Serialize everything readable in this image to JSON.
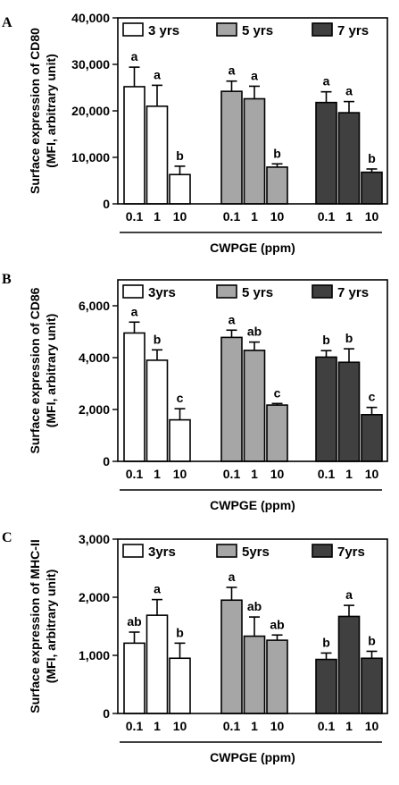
{
  "colors": {
    "3y": "#ffffff",
    "5y": "#a6a6a6",
    "7y": "#404040"
  },
  "chart_data": [
    {
      "type": "bar",
      "panel_label": "A",
      "ylabel_line1": "Surface expression of CD80",
      "ylabel_line2": "(MFI, arbitrary unit)",
      "xlabel": "CWPGE  (ppm)",
      "categories": [
        "0.1",
        "1",
        "10"
      ],
      "ylim": [
        0,
        40000
      ],
      "yticks": [
        0,
        10000,
        20000,
        30000,
        40000
      ],
      "ytick_labels": [
        "0",
        "10,000",
        "20,000",
        "30,000",
        "40,000"
      ],
      "legend_position": "top",
      "series": [
        {
          "name": "3 yrs",
          "color": "3y",
          "values": [
            25200,
            21000,
            6300
          ],
          "errors": [
            4200,
            4500,
            1800
          ],
          "labels": [
            "a",
            "a",
            "b"
          ]
        },
        {
          "name": "5 yrs",
          "color": "5y",
          "values": [
            24200,
            22600,
            7900
          ],
          "errors": [
            2200,
            2700,
            700
          ],
          "labels": [
            "a",
            "a",
            "b"
          ]
        },
        {
          "name": "7 yrs",
          "color": "7y",
          "values": [
            21800,
            19600,
            6800
          ],
          "errors": [
            2300,
            2400,
            700
          ],
          "labels": [
            "a",
            "a",
            "b"
          ]
        }
      ]
    },
    {
      "type": "bar",
      "panel_label": "B",
      "ylabel_line1": "Surface expression of CD86",
      "ylabel_line2": "(MFI, arbitrary unit)",
      "xlabel": "CWPGE  (ppm)",
      "categories": [
        "0.1",
        "1",
        "10"
      ],
      "ylim": [
        0,
        7000
      ],
      "yticks": [
        0,
        2000,
        4000,
        6000
      ],
      "ytick_labels": [
        "0",
        "2,000",
        "4,000",
        "6,000"
      ],
      "legend_position": "top",
      "series": [
        {
          "name": "3yrs",
          "color": "3y",
          "values": [
            4950,
            3900,
            1600
          ],
          "errors": [
            420,
            400,
            430
          ],
          "labels": [
            "a",
            "b",
            "c"
          ]
        },
        {
          "name": "5 yrs",
          "color": "5y",
          "values": [
            4780,
            4280,
            2170
          ],
          "errors": [
            280,
            320,
            60
          ],
          "labels": [
            "a",
            "ab",
            "c"
          ]
        },
        {
          "name": "7 yrs",
          "color": "7y",
          "values": [
            4020,
            3820,
            1800
          ],
          "errors": [
            250,
            520,
            280
          ],
          "labels": [
            "b",
            "b",
            "c"
          ]
        }
      ]
    },
    {
      "type": "bar",
      "panel_label": "C",
      "ylabel_line1": "Surface expression of MHC-II",
      "ylabel_line2": "(MFI, arbitrary unit)",
      "xlabel": "CWPGE  (ppm)",
      "categories": [
        "0.1",
        "1",
        "10"
      ],
      "ylim": [
        0,
        3000
      ],
      "yticks": [
        0,
        1000,
        2000,
        3000
      ],
      "ytick_labels": [
        "0",
        "1,000",
        "2,000",
        "3,000"
      ],
      "legend_position": "top",
      "series": [
        {
          "name": "3yrs",
          "color": "3y",
          "values": [
            1210,
            1690,
            950
          ],
          "errors": [
            190,
            270,
            260
          ],
          "labels": [
            "ab",
            "a",
            "b"
          ]
        },
        {
          "name": "5yrs",
          "color": "5y",
          "values": [
            1950,
            1330,
            1260
          ],
          "errors": [
            220,
            330,
            90
          ],
          "labels": [
            "a",
            "ab",
            "ab"
          ]
        },
        {
          "name": "7yrs",
          "color": "7y",
          "values": [
            930,
            1670,
            950
          ],
          "errors": [
            110,
            190,
            120
          ],
          "labels": [
            "b",
            "a",
            "b"
          ]
        }
      ]
    }
  ]
}
